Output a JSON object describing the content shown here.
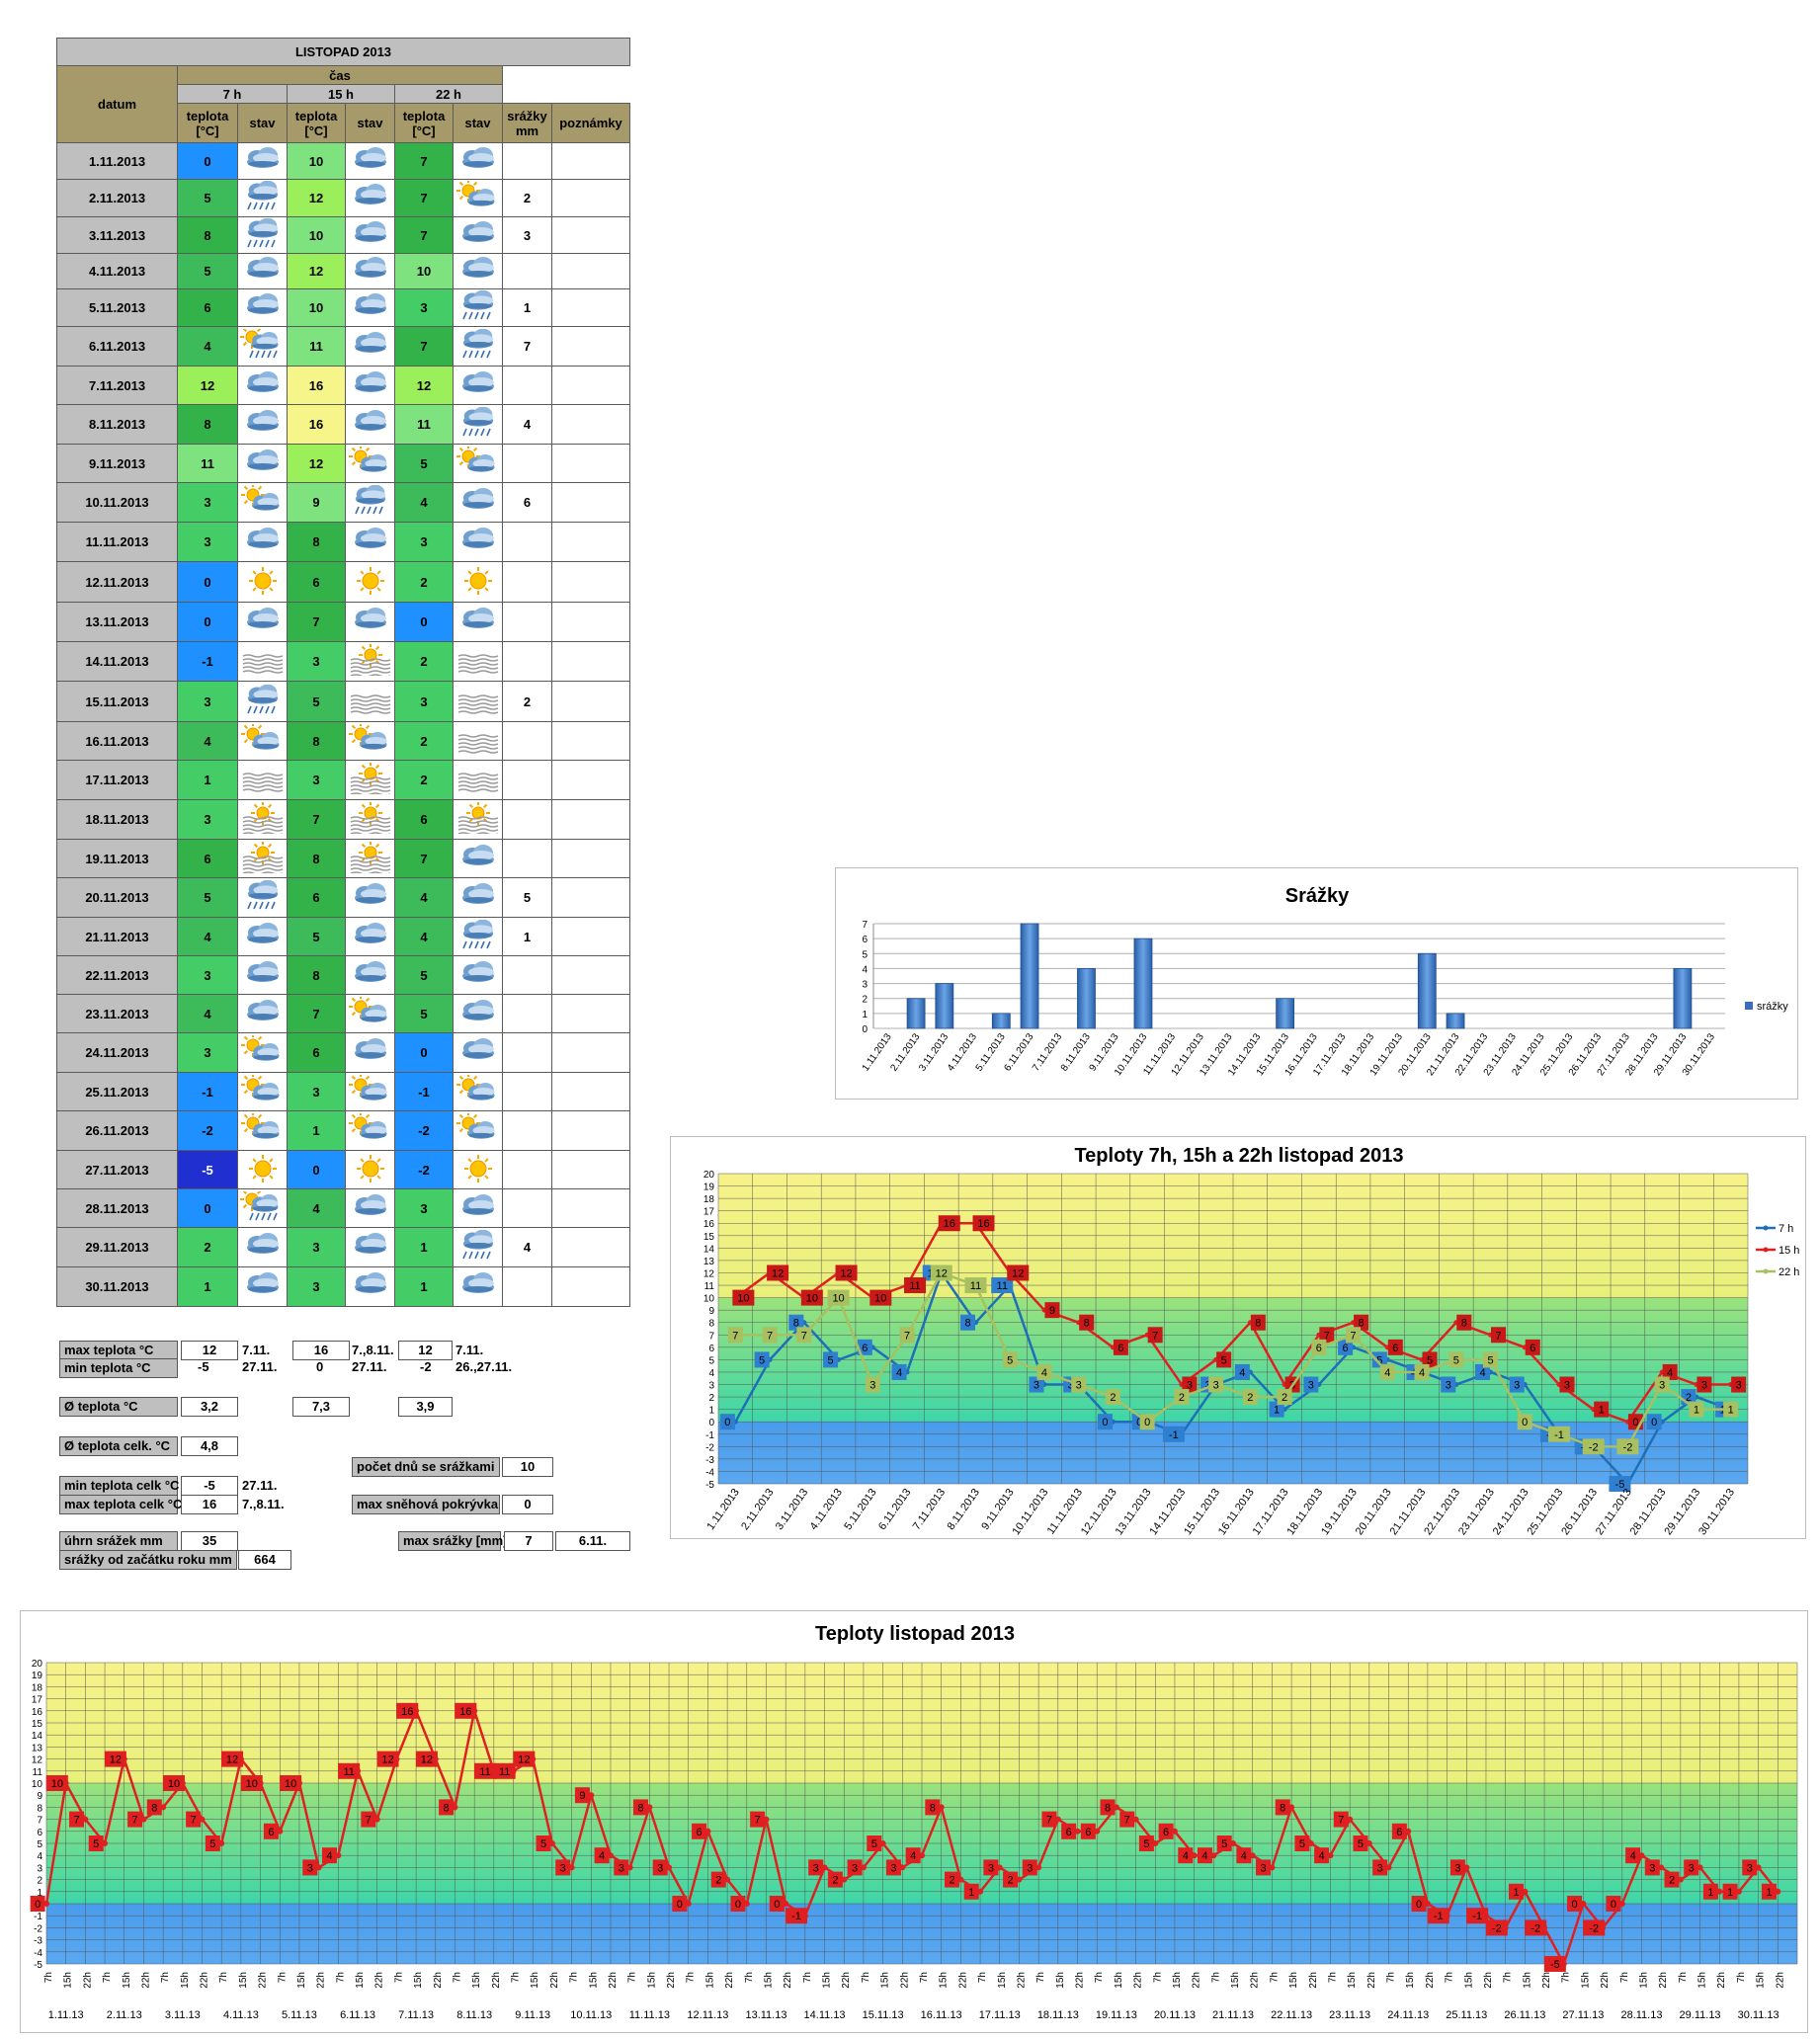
{
  "table": {
    "title": "LISTOPAD 2013",
    "h_datum": "datum",
    "h_cas": "čas",
    "h_7": "7 h",
    "h_15": "15 h",
    "h_22": "22 h",
    "h_teplota": "teplota",
    "h_unit": "[°C]",
    "h_stav": "stav",
    "h_srazky": "srážky",
    "h_mm": "mm",
    "h_poznamky": "poznámky",
    "rows": [
      {
        "date": "1.11.2013",
        "t7": 0,
        "s7": "cloudy",
        "t15": 10,
        "s15": "cloudy",
        "t22": 7,
        "s22": "cloudy",
        "rain": ""
      },
      {
        "date": "2.11.2013",
        "t7": 5,
        "s7": "rain",
        "t15": 12,
        "s15": "cloudy",
        "t22": 7,
        "s22": "partly-sunny",
        "rain": "2"
      },
      {
        "date": "3.11.2013",
        "t7": 8,
        "s7": "rain",
        "t15": 10,
        "s15": "cloudy",
        "t22": 7,
        "s22": "cloudy",
        "rain": "3"
      },
      {
        "date": "4.11.2013",
        "t7": 5,
        "s7": "cloudy",
        "t15": 12,
        "s15": "cloudy",
        "t22": 10,
        "s22": "cloudy",
        "rain": ""
      },
      {
        "date": "5.11.2013",
        "t7": 6,
        "s7": "cloudy",
        "t15": 10,
        "s15": "cloudy",
        "t22": 3,
        "s22": "rain",
        "rain": "1"
      },
      {
        "date": "6.11.2013",
        "t7": 4,
        "s7": "sun-rain",
        "t15": 11,
        "s15": "cloudy",
        "t22": 7,
        "s22": "rain",
        "rain": "7"
      },
      {
        "date": "7.11.2013",
        "t7": 12,
        "s7": "cloudy",
        "t15": 16,
        "s15": "cloudy",
        "t22": 12,
        "s22": "cloudy",
        "rain": ""
      },
      {
        "date": "8.11.2013",
        "t7": 8,
        "s7": "cloudy",
        "t15": 16,
        "s15": "cloudy",
        "t22": 11,
        "s22": "rain",
        "rain": "4"
      },
      {
        "date": "9.11.2013",
        "t7": 11,
        "s7": "cloudy",
        "t15": 12,
        "s15": "partly-sunny",
        "t22": 5,
        "s22": "partly-sunny",
        "rain": ""
      },
      {
        "date": "10.11.2013",
        "t7": 3,
        "s7": "partly-sunny",
        "t15": 9,
        "s15": "rain",
        "t22": 4,
        "s22": "cloudy",
        "rain": "6"
      },
      {
        "date": "11.11.2013",
        "t7": 3,
        "s7": "cloudy",
        "t15": 8,
        "s15": "cloudy",
        "t22": 3,
        "s22": "cloudy",
        "rain": ""
      },
      {
        "date": "12.11.2013",
        "t7": 0,
        "s7": "sunny",
        "t15": 6,
        "s15": "sunny",
        "t22": 2,
        "s22": "sunny",
        "rain": ""
      },
      {
        "date": "13.11.2013",
        "t7": 0,
        "s7": "cloudy",
        "t15": 7,
        "s15": "cloudy",
        "t22": 0,
        "s22": "cloudy",
        "rain": ""
      },
      {
        "date": "14.11.2013",
        "t7": -1,
        "s7": "fog",
        "t15": 3,
        "s15": "sun-fog",
        "t22": 2,
        "s22": "fog",
        "rain": ""
      },
      {
        "date": "15.11.2013",
        "t7": 3,
        "s7": "rain",
        "t15": 5,
        "s15": "fog",
        "t22": 3,
        "s22": "fog",
        "rain": "2"
      },
      {
        "date": "16.11.2013",
        "t7": 4,
        "s7": "partly-sunny",
        "t15": 8,
        "s15": "partly-sunny",
        "t22": 2,
        "s22": "fog",
        "rain": ""
      },
      {
        "date": "17.11.2013",
        "t7": 1,
        "s7": "fog",
        "t15": 3,
        "s15": "sun-fog",
        "t22": 2,
        "s22": "fog",
        "rain": ""
      },
      {
        "date": "18.11.2013",
        "t7": 3,
        "s7": "sun-fog",
        "t15": 7,
        "s15": "sun-fog",
        "t22": 6,
        "s22": "sun-fog",
        "rain": ""
      },
      {
        "date": "19.11.2013",
        "t7": 6,
        "s7": "sun-fog",
        "t15": 8,
        "s15": "sun-fog",
        "t22": 7,
        "s22": "cloudy",
        "rain": ""
      },
      {
        "date": "20.11.2013",
        "t7": 5,
        "s7": "rain",
        "t15": 6,
        "s15": "cloudy",
        "t22": 4,
        "s22": "cloudy",
        "rain": "5"
      },
      {
        "date": "21.11.2013",
        "t7": 4,
        "s7": "cloudy",
        "t15": 5,
        "s15": "cloudy",
        "t22": 4,
        "s22": "rain",
        "rain": "1"
      },
      {
        "date": "22.11.2013",
        "t7": 3,
        "s7": "cloudy",
        "t15": 8,
        "s15": "cloudy",
        "t22": 5,
        "s22": "cloudy",
        "rain": ""
      },
      {
        "date": "23.11.2013",
        "t7": 4,
        "s7": "cloudy",
        "t15": 7,
        "s15": "partly-sunny",
        "t22": 5,
        "s22": "cloudy",
        "rain": ""
      },
      {
        "date": "24.11.2013",
        "t7": 3,
        "s7": "partly-sunny",
        "t15": 6,
        "s15": "cloudy",
        "t22": 0,
        "s22": "cloudy",
        "rain": ""
      },
      {
        "date": "25.11.2013",
        "t7": -1,
        "s7": "partly-sunny",
        "t15": 3,
        "s15": "partly-sunny",
        "t22": -1,
        "s22": "partly-sunny",
        "rain": ""
      },
      {
        "date": "26.11.2013",
        "t7": -2,
        "s7": "partly-sunny",
        "t15": 1,
        "s15": "partly-sunny",
        "t22": -2,
        "s22": "partly-sunny",
        "rain": ""
      },
      {
        "date": "27.11.2013",
        "t7": -5,
        "s7": "sunny",
        "t15": 0,
        "s15": "sunny",
        "t22": -2,
        "s22": "sunny",
        "rain": ""
      },
      {
        "date": "28.11.2013",
        "t7": 0,
        "s7": "sun-rain",
        "t15": 4,
        "s15": "cloudy",
        "t22": 3,
        "s22": "cloudy",
        "rain": ""
      },
      {
        "date": "29.11.2013",
        "t7": 2,
        "s7": "cloudy",
        "t15": 3,
        "s15": "cloudy",
        "t22": 1,
        "s22": "rain",
        "rain": "4"
      },
      {
        "date": "30.11.2013",
        "t7": 1,
        "s7": "cloudy",
        "t15": 3,
        "s15": "cloudy",
        "t22": 1,
        "s22": "cloudy",
        "rain": ""
      }
    ]
  },
  "stats": {
    "max_label": "max teplota °C",
    "max7": "12",
    "max7d": "7.11.",
    "max15": "16",
    "max15d": "7.,8.11.",
    "max22": "12",
    "max22d": "7.11.",
    "min_label": "min teplota °C",
    "min7": "-5",
    "min7d": "27.11.",
    "min15": "0",
    "min15d": "27.11.",
    "min22": "-2",
    "min22d": "26.,27.11.",
    "avg_label": "Ø teplota °C",
    "avg7": "3,2",
    "avg15": "7,3",
    "avg22": "3,9",
    "avgall_label": "Ø teplota celk. °C",
    "avgall": "4,8",
    "raindays_label": "počet dnů se srážkami",
    "raindays": "10",
    "minall_label": "min teplota celk °C",
    "minall": "-5",
    "minall_d": "27.11.",
    "maxall_label": "max teplota celk °C",
    "maxall": "16",
    "maxall_d": "7.,8.11.",
    "snow_label": "max sněhová pokrývka",
    "snow": "0",
    "rainsum_label": "úhrn srážek  mm",
    "rainsum": "35",
    "maxrain_label": "max srážky [mm]",
    "maxrain": "7",
    "maxrain_d": "6.11.",
    "rainyear_label": "srážky od začátku roku mm",
    "rainyear": "664"
  },
  "colors": {
    "blue": "#5aa0e8",
    "green": "#7de07d",
    "yellow": "#f4f08a",
    "red": "#e02020",
    "line7": "#1f6fb8",
    "line22": "#a8c060"
  },
  "chart_data": [
    {
      "type": "bar",
      "title": "Srážky",
      "categories": [
        "1.11.2013",
        "2.11.2013",
        "3.11.2013",
        "4.11.2013",
        "5.11.2013",
        "6.11.2013",
        "7.11.2013",
        "8.11.2013",
        "9.11.2013",
        "10.11.2013",
        "11.11.2013",
        "12.11.2013",
        "13.11.2013",
        "14.11.2013",
        "15.11.2013",
        "16.11.2013",
        "17.11.2013",
        "18.11.2013",
        "19.11.2013",
        "20.11.2013",
        "21.11.2013",
        "22.11.2013",
        "23.11.2013",
        "24.11.2013",
        "25.11.2013",
        "26.11.2013",
        "27.11.2013",
        "28.11.2013",
        "29.11.2013",
        "30.11.2013"
      ],
      "series": [
        {
          "name": "srážky",
          "values": [
            0,
            2,
            3,
            0,
            1,
            7,
            0,
            4,
            0,
            6,
            0,
            0,
            0,
            0,
            2,
            0,
            0,
            0,
            0,
            5,
            1,
            0,
            0,
            0,
            0,
            0,
            0,
            0,
            4,
            0
          ]
        }
      ],
      "ylim": [
        0,
        7
      ],
      "yticks": [
        "0",
        "1",
        "2",
        "3",
        "4",
        "5",
        "6",
        "7"
      ],
      "legend": "right"
    },
    {
      "type": "line",
      "title": "Teploty 7h, 15h a 22h listopad 2013",
      "categories": [
        "1.11.2013",
        "2.11.2013",
        "3.11.2013",
        "4.11.2013",
        "5.11.2013",
        "6.11.2013",
        "7.11.2013",
        "8.11.2013",
        "9.11.2013",
        "10.11.2013",
        "11.11.2013",
        "12.11.2013",
        "13.11.2013",
        "14.11.2013",
        "15.11.2013",
        "16.11.2013",
        "17.11.2013",
        "18.11.2013",
        "19.11.2013",
        "20.11.2013",
        "21.11.2013",
        "22.11.2013",
        "23.11.2013",
        "24.11.2013",
        "25.11.2013",
        "26.11.2013",
        "27.11.2013",
        "28.11.2013",
        "29.11.2013",
        "30.11.2013"
      ],
      "series": [
        {
          "name": "7 h",
          "values": [
            0,
            5,
            8,
            5,
            6,
            4,
            12,
            8,
            11,
            3,
            3,
            0,
            0,
            -1,
            3,
            4,
            1,
            3,
            6,
            5,
            4,
            3,
            4,
            3,
            -1,
            -2,
            -5,
            0,
            2,
            1
          ]
        },
        {
          "name": "15 h",
          "values": [
            10,
            12,
            10,
            12,
            10,
            11,
            16,
            16,
            12,
            9,
            8,
            6,
            7,
            3,
            5,
            8,
            3,
            7,
            8,
            6,
            5,
            8,
            7,
            6,
            3,
            1,
            0,
            4,
            3,
            3
          ]
        },
        {
          "name": "22 h",
          "values": [
            7,
            7,
            7,
            10,
            3,
            7,
            12,
            11,
            5,
            4,
            3,
            2,
            0,
            2,
            3,
            2,
            2,
            6,
            7,
            4,
            4,
            5,
            5,
            0,
            -1,
            -2,
            -2,
            3,
            1,
            1
          ]
        }
      ],
      "ylim": [
        -5,
        20
      ],
      "yticks": [
        "-5",
        "-4",
        "-3",
        "-2",
        "-1",
        "0",
        "1",
        "2",
        "3",
        "4",
        "5",
        "6",
        "7",
        "8",
        "9",
        "10",
        "11",
        "12",
        "13",
        "14",
        "15",
        "16",
        "17",
        "18",
        "19",
        "20"
      ],
      "legend": "right"
    },
    {
      "type": "line",
      "title": "Teploty listopad 2013",
      "subticks": [
        "7h",
        "15h",
        "22h"
      ],
      "days": [
        "1.11.13",
        "2.11.13",
        "3.11.13",
        "4.11.13",
        "5.11.13",
        "6.11.13",
        "7.11.13",
        "8.11.13",
        "9.11.13",
        "10.11.13",
        "11.11.13",
        "12.11.13",
        "13.11.13",
        "14.11.13",
        "15.11.13",
        "16.11.13",
        "17.11.13",
        "18.11.13",
        "19.11.13",
        "20.11.13",
        "21.11.13",
        "22.11.13",
        "23.11.13",
        "24.11.13",
        "25.11.13",
        "26.11.13",
        "27.11.13",
        "28.11.13",
        "29.11.13",
        "30.11.13"
      ],
      "series": [
        {
          "values": [
            0,
            10,
            7,
            5,
            12,
            7,
            8,
            10,
            7,
            5,
            12,
            10,
            6,
            10,
            3,
            4,
            11,
            7,
            12,
            16,
            12,
            8,
            16,
            11,
            11,
            12,
            5,
            3,
            9,
            4,
            3,
            8,
            3,
            0,
            6,
            2,
            0,
            7,
            0,
            -1,
            3,
            2,
            3,
            5,
            3,
            4,
            8,
            2,
            1,
            3,
            2,
            3,
            7,
            6,
            6,
            8,
            7,
            5,
            6,
            4,
            4,
            5,
            4,
            3,
            8,
            5,
            4,
            7,
            5,
            3,
            6,
            0,
            -1,
            3,
            -1,
            -2,
            1,
            -2,
            -5,
            0,
            -2,
            0,
            4,
            3,
            2,
            3,
            1,
            1,
            3,
            1
          ]
        }
      ],
      "ylim": [
        -5,
        20
      ],
      "yticks": [
        "-5",
        "-4",
        "-3",
        "-2",
        "-1",
        "0",
        "1",
        "2",
        "3",
        "4",
        "5",
        "6",
        "7",
        "8",
        "9",
        "10",
        "11",
        "12",
        "13",
        "14",
        "15",
        "16",
        "17",
        "18",
        "19",
        "20"
      ]
    }
  ]
}
